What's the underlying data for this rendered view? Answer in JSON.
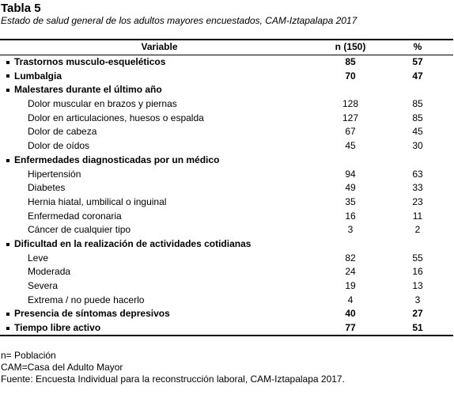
{
  "title": "Tabla 5",
  "subtitle": "Estado de salud general de los adultos mayores encuestados, CAM-Iztapalapa 2017",
  "table": {
    "header": [
      "Variable",
      "n (150)",
      "%"
    ],
    "rows": [
      {
        "label": "Trastornos musculo-esqueléticos",
        "n": 85,
        "pct": 57
      },
      {
        "label": "Lumbalgia",
        "n": 70,
        "pct": 47
      },
      {
        "label": "Malestares durante el último año",
        "items": [
          {
            "label": "Dolor muscular en brazos y piernas",
            "n": 128,
            "pct": 85
          },
          {
            "label": "Dolor en articulaciones, huesos o espalda",
            "n": 127,
            "pct": 85
          },
          {
            "label": "Dolor de cabeza",
            "n": 67,
            "pct": 45
          },
          {
            "label": "Dolor de oídos",
            "n": 45,
            "pct": 30
          }
        ]
      },
      {
        "label": "Enfermedades diagnosticadas por un médico",
        "items": [
          {
            "label": "Hipertensión",
            "n": 94,
            "pct": 63
          },
          {
            "label": "Diabetes",
            "n": 49,
            "pct": 33
          },
          {
            "label": "Hernia hiatal, umbilical o inguinal",
            "n": 35,
            "pct": 23
          },
          {
            "label": "Enfermedad coronaria",
            "n": 16,
            "pct": 11
          },
          {
            "label": "Cáncer de cualquier tipo",
            "n": 3,
            "pct": 2
          }
        ]
      },
      {
        "label": "Dificultad en la realización de actividades cotidianas",
        "items": [
          {
            "label": "Leve",
            "n": 82,
            "pct": 55
          },
          {
            "label": "Moderada",
            "n": 24,
            "pct": 16
          },
          {
            "label": "Severa",
            "n": 19,
            "pct": 13
          },
          {
            "label": "Extrema / no puede hacerlo",
            "n": 4,
            "pct": 3
          }
        ]
      },
      {
        "label": "Presencia de síntomas depresivos",
        "n": 40,
        "pct": 27
      },
      {
        "label": "Tiempo libre activo",
        "n": 77,
        "pct": 51
      }
    ]
  },
  "notes": [
    "n= Población",
    "CAM=Casa del Adulto Mayor",
    "Fuente: Encuesta Individual para la reconstrucción laboral, CAM-Iztapalapa 2017."
  ]
}
